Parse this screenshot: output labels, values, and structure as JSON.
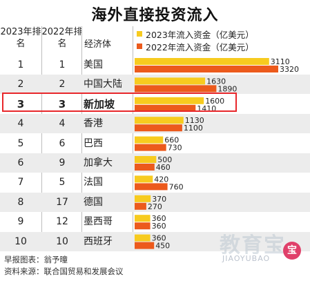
{
  "title": "海外直接投资流入",
  "header": {
    "rank_2023": "2023年排名",
    "rank_2022": "2022年排名",
    "economy": "经济体"
  },
  "colors": {
    "series_2023": "#f7cb1f",
    "series_2022": "#ec5a1c",
    "highlight_border": "#e8262a"
  },
  "chart_data": {
    "type": "bar",
    "title": "海外直接投资流入",
    "categories": [
      "美国",
      "中国大陆",
      "新加坡",
      "香港",
      "巴西",
      "加拿大",
      "法国",
      "德国",
      "墨西哥",
      "西班牙"
    ],
    "series": [
      {
        "name": "2023年流入资金（亿美元）",
        "values": [
          3110,
          1630,
          1600,
          1130,
          660,
          500,
          420,
          370,
          360,
          360
        ]
      },
      {
        "name": "2022年流入资金（亿美元）",
        "values": [
          3320,
          1890,
          1410,
          1100,
          730,
          460,
          760,
          270,
          360,
          450
        ]
      }
    ],
    "legend": "top",
    "rank_2023": [
      "1",
      "2",
      "3",
      "4",
      "5",
      "6",
      "7",
      "8",
      "9",
      "10"
    ],
    "rank_2022": [
      "1",
      "2",
      "3",
      "4",
      "6",
      "9",
      "5",
      "17",
      "12",
      "10"
    ],
    "highlight": "新加坡"
  },
  "footer": {
    "credit": "早报图表：翁予曈",
    "source": "资料来源：联合国贸易和发展会议"
  },
  "watermark": {
    "text": "教育宝",
    "sub": "JIAOYUBAO"
  }
}
